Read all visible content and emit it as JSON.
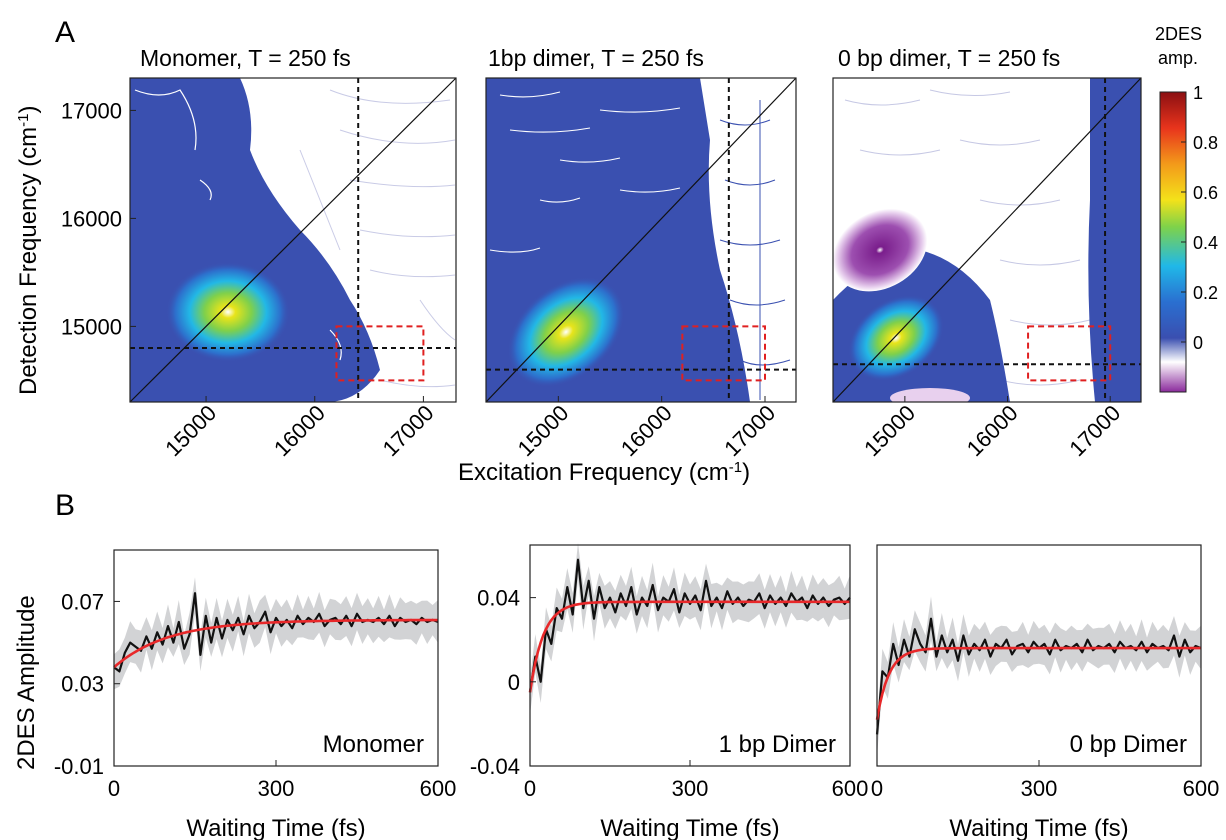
{
  "figure": {
    "panel_a_label": "A",
    "panel_b_label": "B",
    "a_ylabel": "Detection Frequency (cm",
    "a_ylabel_sup": "-1",
    "a_ylabel_end": ")",
    "a_xlabel": "Excitation Frequency (cm",
    "a_xlabel_sup": "-1",
    "a_xlabel_end": ")",
    "b_ylabel": "2DES Amplitude",
    "colorbar_title_1": "2DES",
    "colorbar_title_2": "amp.",
    "colorbar_ticks": [
      "1",
      "0.8",
      "0.6",
      "0.4",
      "0.2",
      "0"
    ]
  },
  "chart_data": [
    {
      "type": "heatmap",
      "title": "Monomer, T = 250 fs",
      "x_ticks": [
        "15000",
        "16000",
        "17000"
      ],
      "y_ticks": [
        "17000",
        "16000",
        "15000"
      ],
      "xlim": [
        14300,
        17300
      ],
      "ylim": [
        14300,
        17300
      ],
      "diagonal": true,
      "crosshair": {
        "x": 16400,
        "y": 14800
      },
      "box": {
        "x": [
          16200,
          17000
        ],
        "y": [
          14500,
          15000
        ]
      },
      "peaks": [
        {
          "x": 15200,
          "y": 15100,
          "amplitude": 0.45
        }
      ]
    },
    {
      "type": "heatmap",
      "title": "1bp dimer, T = 250 fs",
      "x_ticks": [
        "15000",
        "16000",
        "17000"
      ],
      "xlim": [
        14300,
        17300
      ],
      "ylim": [
        14300,
        17300
      ],
      "diagonal": true,
      "crosshair": {
        "x": 16650,
        "y": 14600
      },
      "box": {
        "x": [
          16200,
          17000
        ],
        "y": [
          14500,
          15000
        ]
      },
      "peaks": [
        {
          "x": 15000,
          "y": 14900,
          "amplitude": 0.42
        }
      ]
    },
    {
      "type": "heatmap",
      "title": "0 bp dimer, T = 250 fs",
      "x_ticks": [
        "15000",
        "16000",
        "17000"
      ],
      "xlim": [
        14300,
        17300
      ],
      "ylim": [
        14300,
        17300
      ],
      "diagonal": true,
      "crosshair": {
        "x": 16950,
        "y": 14650
      },
      "box": {
        "x": [
          16200,
          17000
        ],
        "y": [
          14500,
          15000
        ]
      },
      "peaks": [
        {
          "x": 14850,
          "y": 14850,
          "amplitude": 0.5
        },
        {
          "x": 14800,
          "y": 15600,
          "amplitude": -0.1
        }
      ]
    },
    {
      "type": "line",
      "xlabel": "Waiting Time (fs)",
      "x_ticks": [
        "0",
        "300",
        "600"
      ],
      "y_ticks": [
        "0.07",
        "0.03",
        "-0.01"
      ],
      "xlim": [
        0,
        600
      ],
      "ylim": [
        -0.01,
        0.095
      ],
      "annotation": "Monomer",
      "series": [
        {
          "values": [
            0.038,
            0.036,
            0.045,
            0.05,
            0.048,
            0.046,
            0.053,
            0.047,
            0.055,
            0.049,
            0.058,
            0.05,
            0.06,
            0.047,
            0.054,
            0.074,
            0.044,
            0.063,
            0.05,
            0.062,
            0.052,
            0.061,
            0.056,
            0.062,
            0.054,
            0.063,
            0.057,
            0.06,
            0.065,
            0.055,
            0.062,
            0.058,
            0.061,
            0.057,
            0.063,
            0.059,
            0.062,
            0.06,
            0.064,
            0.058,
            0.061,
            0.062,
            0.059,
            0.063,
            0.058,
            0.064,
            0.06,
            0.061,
            0.06,
            0.062,
            0.059,
            0.063,
            0.058,
            0.062,
            0.06,
            0.061,
            0.059,
            0.062,
            0.06,
            0.061,
            0.06
          ]
        },
        {
          "fit": {
            "y0": 0.038,
            "yinf": 0.061,
            "tau_fs": 100
          }
        }
      ]
    },
    {
      "type": "line",
      "xlabel": "Waiting Time (fs)",
      "x_ticks": [
        "0",
        "300",
        "600"
      ],
      "y_ticks": [
        "0.04",
        "0",
        "-0.04"
      ],
      "xlim": [
        0,
        600
      ],
      "ylim": [
        -0.04,
        0.065
      ],
      "annotation": "1 bp Dimer",
      "series": [
        {
          "values": [
            -0.005,
            0.012,
            0.0,
            0.025,
            0.018,
            0.035,
            0.03,
            0.045,
            0.032,
            0.058,
            0.035,
            0.048,
            0.03,
            0.045,
            0.035,
            0.04,
            0.033,
            0.042,
            0.036,
            0.045,
            0.032,
            0.04,
            0.036,
            0.046,
            0.034,
            0.04,
            0.038,
            0.044,
            0.033,
            0.042,
            0.037,
            0.041,
            0.034,
            0.048,
            0.036,
            0.04,
            0.035,
            0.043,
            0.037,
            0.04,
            0.036,
            0.039,
            0.038,
            0.042,
            0.035,
            0.041,
            0.037,
            0.04,
            0.036,
            0.042,
            0.038,
            0.04,
            0.035,
            0.041,
            0.037,
            0.04,
            0.036,
            0.039,
            0.04,
            0.037,
            0.04
          ]
        },
        {
          "fit": {
            "y0": -0.005,
            "yinf": 0.038,
            "tau_fs": 25
          }
        }
      ]
    },
    {
      "type": "line",
      "xlabel": "Waiting Time (fs)",
      "x_ticks": [
        "0",
        "300",
        "600"
      ],
      "xlim": [
        0,
        600
      ],
      "ylim": [
        -0.04,
        0.065
      ],
      "annotation": "0 bp Dimer",
      "series": [
        {
          "values": [
            -0.025,
            0.005,
            0.002,
            0.018,
            0.008,
            0.02,
            0.012,
            0.025,
            0.018,
            0.014,
            0.03,
            0.012,
            0.022,
            0.014,
            0.02,
            0.01,
            0.022,
            0.013,
            0.018,
            0.015,
            0.02,
            0.012,
            0.018,
            0.016,
            0.02,
            0.013,
            0.017,
            0.018,
            0.014,
            0.019,
            0.016,
            0.018,
            0.013,
            0.02,
            0.015,
            0.017,
            0.016,
            0.018,
            0.014,
            0.02,
            0.015,
            0.017,
            0.016,
            0.018,
            0.014,
            0.019,
            0.016,
            0.017,
            0.015,
            0.019,
            0.014,
            0.018,
            0.016,
            0.017,
            0.015,
            0.022,
            0.012,
            0.02,
            0.014,
            0.017,
            0.016
          ]
        },
        {
          "fit": {
            "y0": -0.018,
            "yinf": 0.016,
            "tau_fs": 22
          }
        }
      ]
    }
  ]
}
